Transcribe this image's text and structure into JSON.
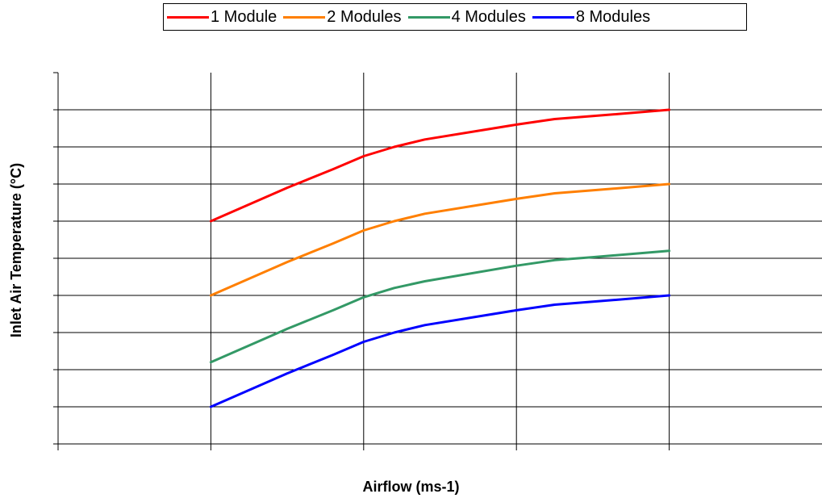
{
  "chart_data": {
    "type": "line",
    "title": "",
    "xlabel": "Airflow (ms-1)",
    "ylabel": "Inlet Air Temperature (°C)",
    "x_range": [
      0,
      5
    ],
    "y_range": [
      0,
      10
    ],
    "x_gridlines": [
      1,
      2,
      3,
      4
    ],
    "y_gridlines": [
      1,
      2,
      3,
      4,
      5,
      6,
      7,
      8,
      9
    ],
    "tick_labels_shown": false,
    "legend_position": "top",
    "series": [
      {
        "name": "1 Module",
        "color": "#ff0000",
        "x": [
          1,
          1.5,
          1.8,
          2.0,
          2.2,
          2.4,
          3.0,
          3.25,
          3.5,
          4.0
        ],
        "y": [
          6.0,
          6.9,
          7.4,
          7.75,
          8.0,
          8.2,
          8.6,
          8.75,
          8.83,
          9.0
        ]
      },
      {
        "name": "2 Modules",
        "color": "#ff7f00",
        "x": [
          1,
          1.5,
          1.8,
          2.0,
          2.2,
          2.4,
          3.0,
          3.25,
          3.5,
          4.0
        ],
        "y": [
          4.0,
          4.9,
          5.4,
          5.75,
          6.0,
          6.2,
          6.6,
          6.75,
          6.83,
          7.0
        ]
      },
      {
        "name": "4 Modules",
        "color": "#339966",
        "x": [
          1,
          1.5,
          1.8,
          2.0,
          2.2,
          2.4,
          3.0,
          3.25,
          3.5,
          4.0
        ],
        "y": [
          2.2,
          3.1,
          3.6,
          3.95,
          4.2,
          4.38,
          4.8,
          4.95,
          5.03,
          5.2
        ]
      },
      {
        "name": "8 Modules",
        "color": "#0000ff",
        "x": [
          1,
          1.5,
          1.8,
          2.0,
          2.2,
          2.4,
          3.0,
          3.25,
          3.5,
          4.0
        ],
        "y": [
          1.0,
          1.9,
          2.4,
          2.75,
          3.0,
          3.2,
          3.6,
          3.75,
          3.83,
          4.0
        ]
      }
    ]
  }
}
